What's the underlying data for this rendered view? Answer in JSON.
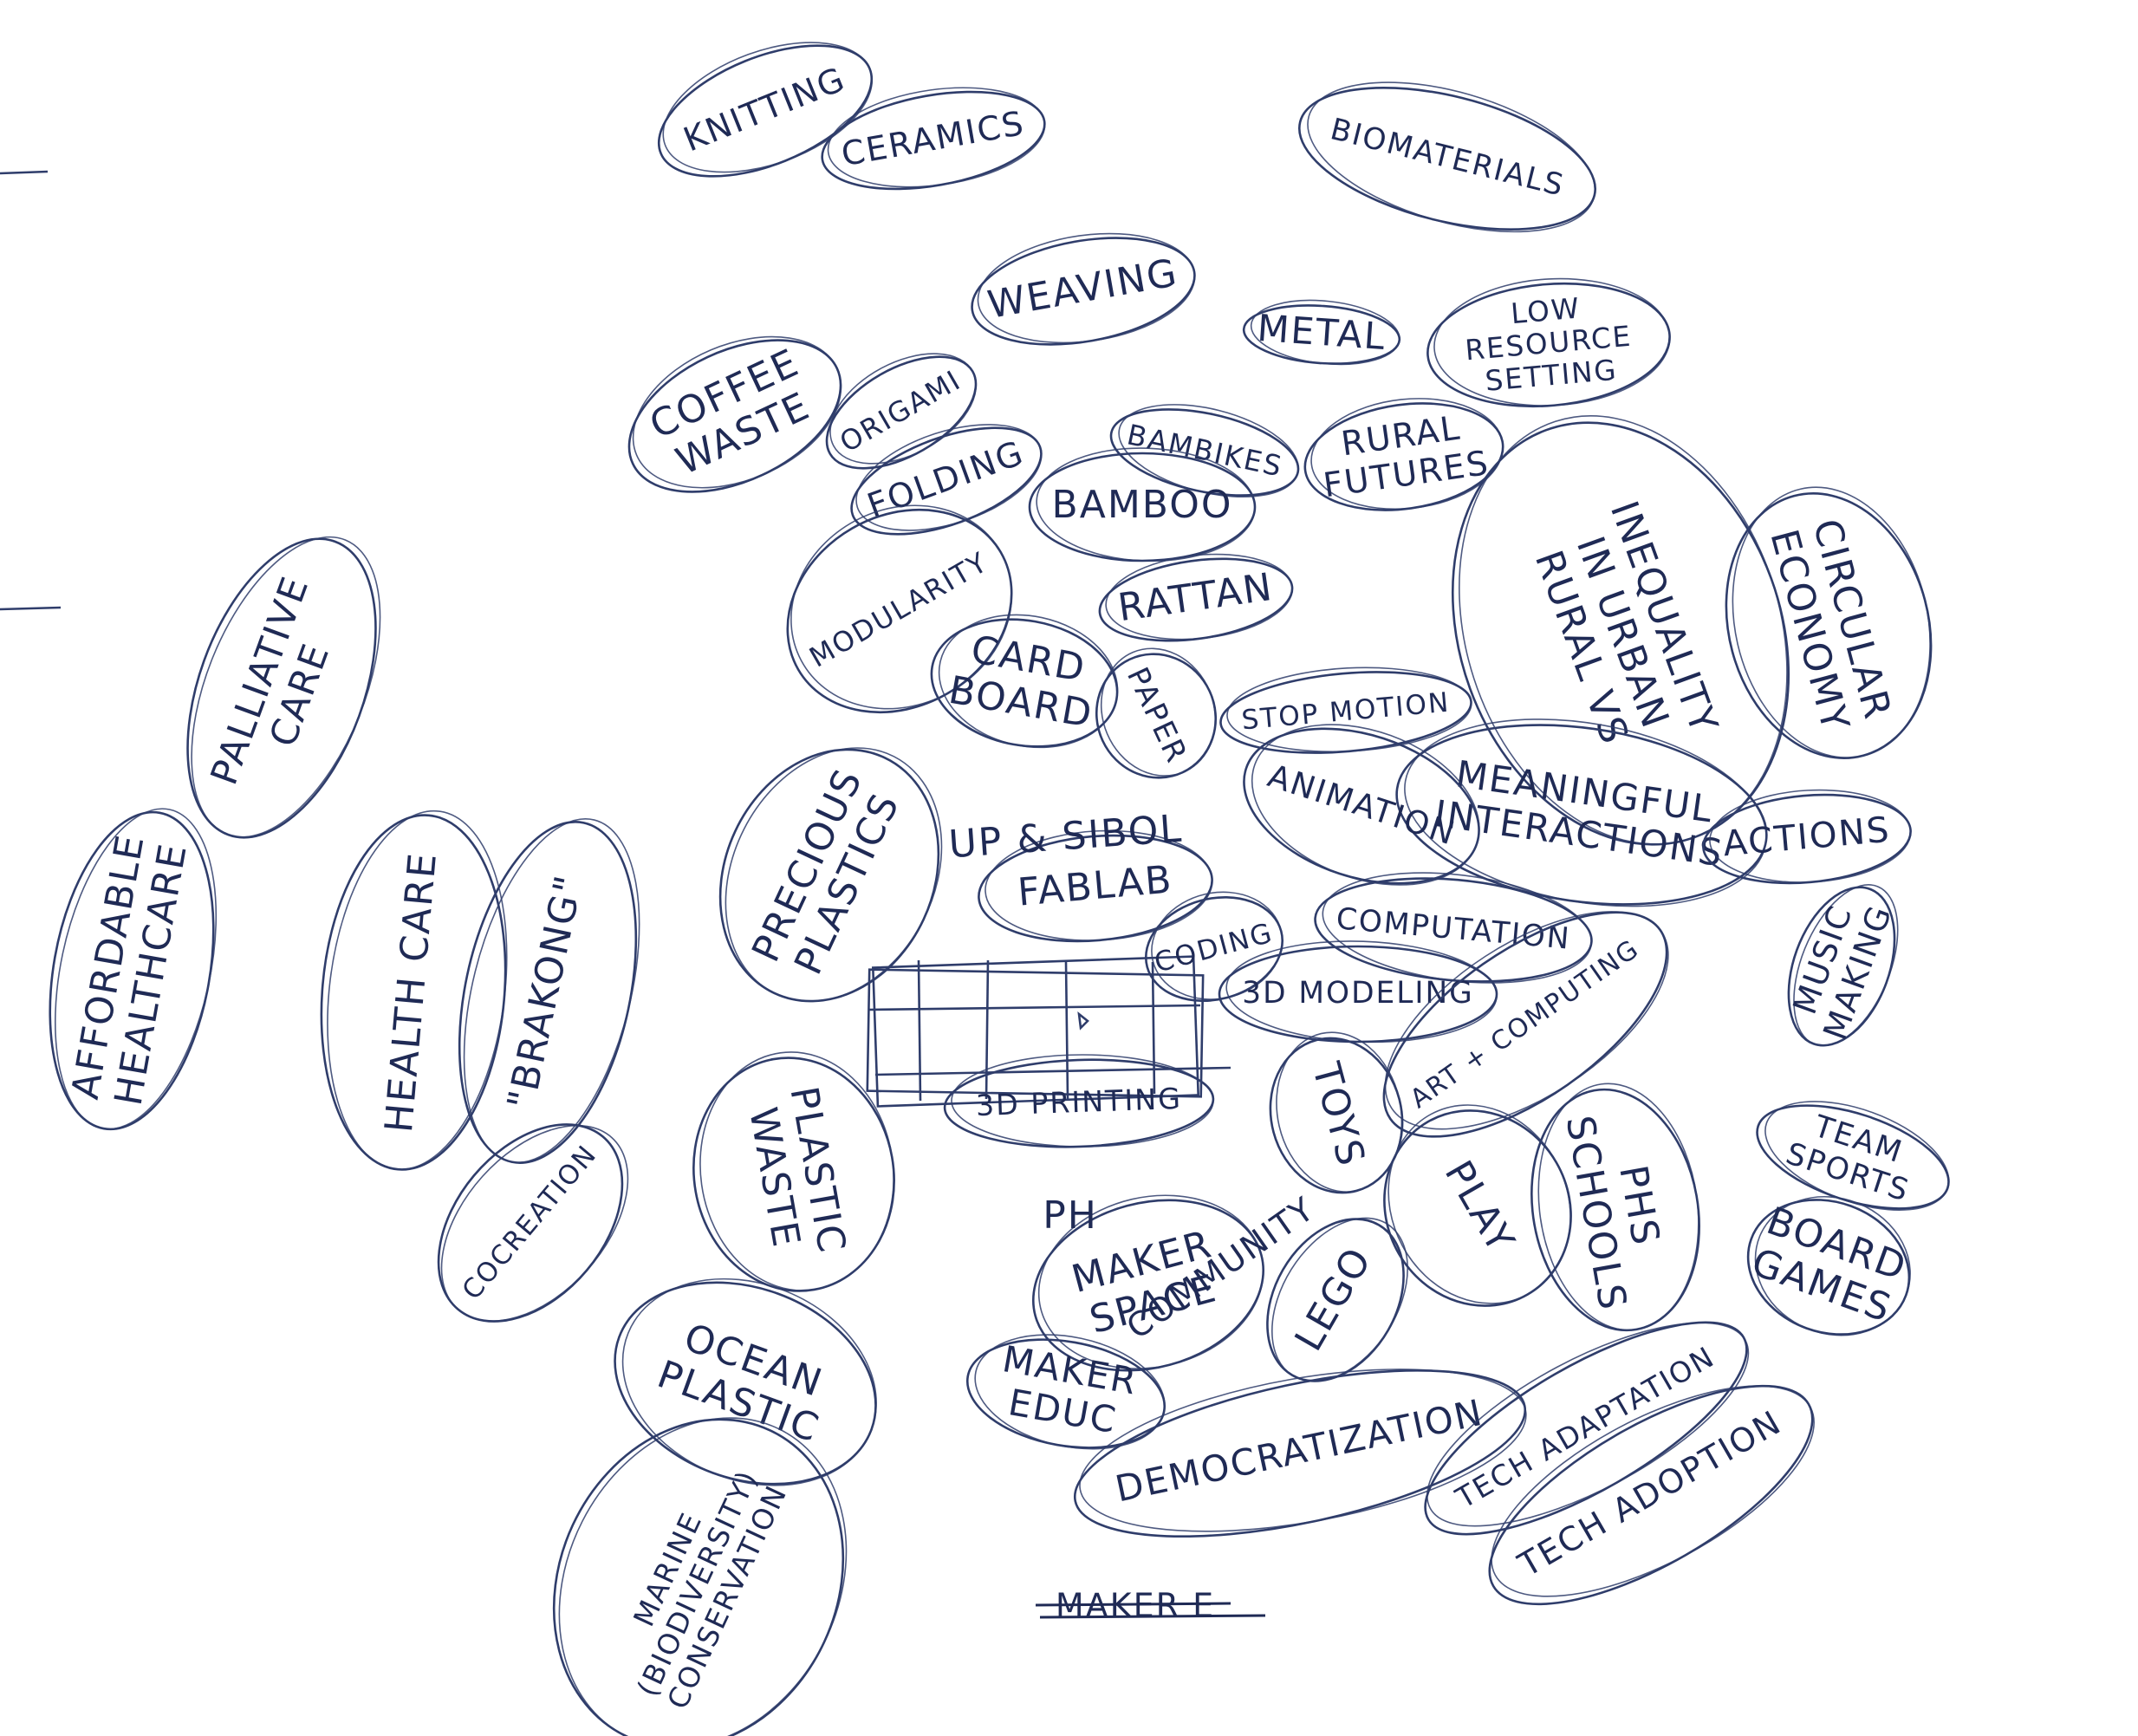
{
  "bubbles": [
    {
      "id": "knitting",
      "lines": [
        "KNITTING"
      ]
    },
    {
      "id": "ceramics",
      "lines": [
        "CERAMICS"
      ]
    },
    {
      "id": "biomaterials",
      "lines": [
        "BIOMATERIALS"
      ]
    },
    {
      "id": "weaving",
      "lines": [
        "WEAVING"
      ]
    },
    {
      "id": "metal",
      "lines": [
        "METAL"
      ]
    },
    {
      "id": "low-resource",
      "lines": [
        "LOW",
        "RESOURCE",
        "SETTING"
      ]
    },
    {
      "id": "coffee-waste",
      "lines": [
        "COFFEE",
        "WASTE"
      ]
    },
    {
      "id": "origami",
      "lines": [
        "ORIGAMI"
      ]
    },
    {
      "id": "folding",
      "lines": [
        "FOLDING"
      ]
    },
    {
      "id": "bambikes",
      "lines": [
        "BAMBIKES"
      ]
    },
    {
      "id": "rural-futures",
      "lines": [
        "RURAL",
        "FUTURES"
      ]
    },
    {
      "id": "bamboo",
      "lines": [
        "BAMBOO"
      ]
    },
    {
      "id": "inequality",
      "lines": [
        "INEQUALITY",
        "IN URBAN",
        "RURAL VS"
      ]
    },
    {
      "id": "circular-economy",
      "lines": [
        "CIRCULAR",
        "ECONOMY"
      ]
    },
    {
      "id": "modularity",
      "lines": [
        "MODULARITY"
      ]
    },
    {
      "id": "rattan",
      "lines": [
        "RATTAN"
      ]
    },
    {
      "id": "palliative-care",
      "lines": [
        "PALLIATIVE",
        "CARE"
      ]
    },
    {
      "id": "cardboard",
      "lines": [
        "CARD",
        "BOARD"
      ]
    },
    {
      "id": "paper",
      "lines": [
        "PAPER"
      ]
    },
    {
      "id": "stop-motion",
      "lines": [
        "STOP MOTION"
      ]
    },
    {
      "id": "meaningful-interactions",
      "lines": [
        "MEANINGFUL",
        "INTERACTIONS"
      ]
    },
    {
      "id": "animation",
      "lines": [
        "ANIMATION"
      ]
    },
    {
      "id": "actions",
      "lines": [
        "ACTIONS"
      ]
    },
    {
      "id": "precious-plastics",
      "lines": [
        "PRECIOUS",
        "PLASTICS"
      ]
    },
    {
      "id": "affordable-healthcare",
      "lines": [
        "AFFORDABLE",
        "HEALTHCARE"
      ]
    },
    {
      "id": "health-care",
      "lines": [
        "HEALTH CARE"
      ]
    },
    {
      "id": "brakong",
      "lines": [
        "\"BRAKONG\""
      ]
    },
    {
      "id": "fablab",
      "lines": [
        "FABLAB"
      ]
    },
    {
      "id": "coding",
      "lines": [
        "CODING"
      ]
    },
    {
      "id": "computation",
      "lines": [
        "COMPUTATION"
      ]
    },
    {
      "id": "music-making",
      "lines": [
        "MUSIC",
        "MAKING"
      ]
    },
    {
      "id": "3d-modeling",
      "lines": [
        "3D MODELING"
      ]
    },
    {
      "id": "art-computing",
      "lines": [
        "ART + COMPUTING"
      ]
    },
    {
      "id": "3d-printing",
      "lines": [
        "3D PRINTING"
      ]
    },
    {
      "id": "plastic-waste",
      "lines": [
        "PLASTIC",
        "WASTE"
      ]
    },
    {
      "id": "toys",
      "lines": [
        "TOYS"
      ]
    },
    {
      "id": "schools",
      "lines": [
        "PHS",
        "SCHOOLS"
      ]
    },
    {
      "id": "team-sports",
      "lines": [
        "TEAM",
        "SPORTS"
      ]
    },
    {
      "id": "play",
      "lines": [
        "PLAY"
      ]
    },
    {
      "id": "cocreation",
      "lines": [
        "COCREATION"
      ]
    },
    {
      "id": "ph-maker-space",
      "lines": [
        "MAKER",
        "SPACE"
      ]
    },
    {
      "id": "lego",
      "lines": [
        "LEGO"
      ]
    },
    {
      "id": "board-games",
      "lines": [
        "BOARD",
        "GAMES"
      ]
    },
    {
      "id": "ocean-plastic",
      "lines": [
        "OCEAN",
        "PLASTIC"
      ]
    },
    {
      "id": "maker-educ",
      "lines": [
        "MAKER",
        "EDUC"
      ]
    },
    {
      "id": "democratization",
      "lines": [
        "DEMOCRATIZATION"
      ]
    },
    {
      "id": "tech-adaptation",
      "lines": [
        "TECH ADAPTATION"
      ]
    },
    {
      "id": "marine-conservation",
      "lines": [
        "MARINE",
        "(BIODIVERSITY)",
        "CONSERVATION"
      ]
    },
    {
      "id": "tech-adoption",
      "lines": [
        "TECH ADOPTION"
      ]
    }
  ],
  "free_text": {
    "up_sibol": "UP & SIBOL",
    "ph": "PH",
    "community": "COMMUNITY",
    "maker_crossed": "MAKER E"
  }
}
